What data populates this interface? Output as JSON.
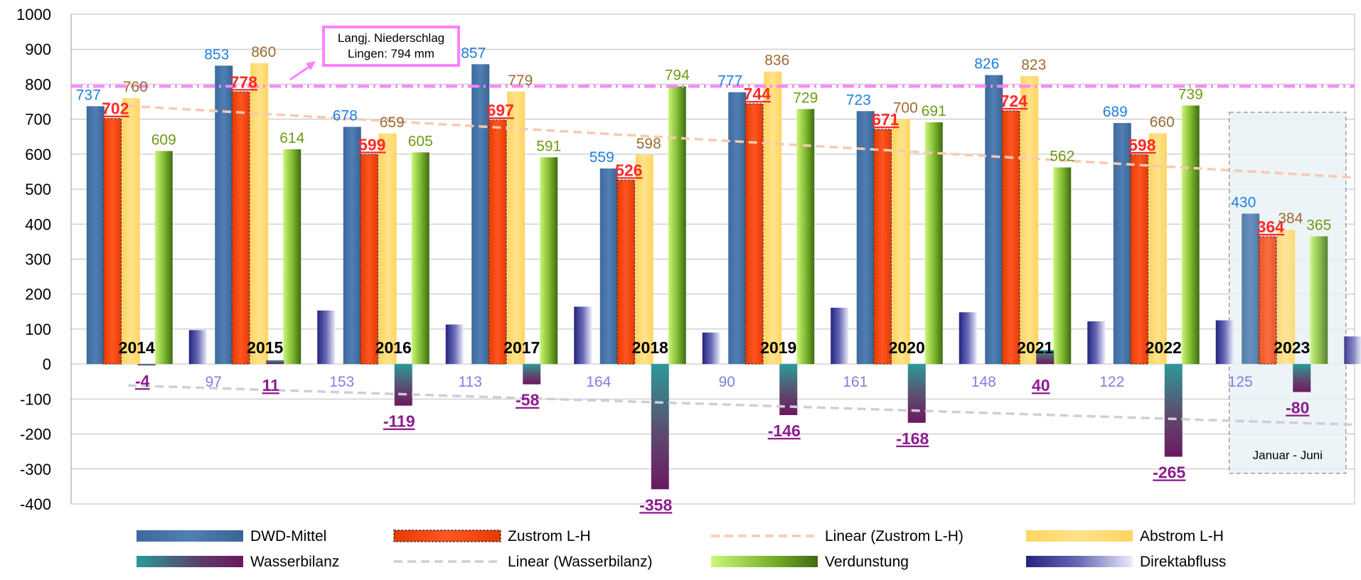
{
  "chart_data": {
    "type": "bar",
    "categories": [
      "2014",
      "2015",
      "2016",
      "2017",
      "2018",
      "2019",
      "2020",
      "2021",
      "2022",
      "2023"
    ],
    "ylim": [
      -400,
      1000
    ],
    "yticks": [
      -400,
      -300,
      -200,
      -100,
      0,
      100,
      200,
      300,
      400,
      500,
      600,
      700,
      800,
      900,
      1000
    ],
    "grid": true,
    "legend_position": "bottom",
    "series": [
      {
        "name": "DWD-Mittel",
        "color": "#4472A8",
        "label_color": "#1F7FE0",
        "values": [
          737,
          853,
          678,
          857,
          559,
          777,
          723,
          826,
          689,
          430
        ]
      },
      {
        "name": "Zustrom L-H",
        "color": "#FF4713",
        "label_color": "#FF2A2A",
        "values": [
          702,
          778,
          599,
          697,
          526,
          744,
          671,
          724,
          598,
          364
        ]
      },
      {
        "name": "Abstrom L-H",
        "color": "#FFD966",
        "label_color": "#9C6B30",
        "values": [
          760,
          860,
          659,
          779,
          598,
          836,
          700,
          823,
          660,
          384
        ]
      },
      {
        "name": "Wasserbilanz",
        "color": "#6A1B5E",
        "label_color": "#8E1C8E",
        "values": [
          -4,
          11,
          -119,
          -58,
          -358,
          -146,
          -168,
          40,
          -265,
          -80
        ]
      },
      {
        "name": "Verdunstung",
        "color": "#7DB82E",
        "label_color": "#6E9A18",
        "values": [
          609,
          614,
          605,
          591,
          794,
          729,
          691,
          562,
          739,
          365
        ]
      },
      {
        "name": "Direktabfluss",
        "color": "#2B2C8E",
        "label_color": "#8080E0",
        "values": [
          97,
          153,
          113,
          164,
          90,
          161,
          148,
          122,
          125,
          79
        ]
      }
    ],
    "trendlines": [
      {
        "name": "Linear (Zustrom L-H)",
        "color": "#F8C9B0"
      },
      {
        "name": "Linear (Wasserbilanz)",
        "color": "#D0CCDC"
      }
    ],
    "reference_line": {
      "value": 794,
      "color": "#FF80FF"
    },
    "annotation": {
      "line1": "Langj. Niederschlag",
      "line2": "Lingen: 794 mm"
    },
    "period_note": "Januar - Juni"
  }
}
